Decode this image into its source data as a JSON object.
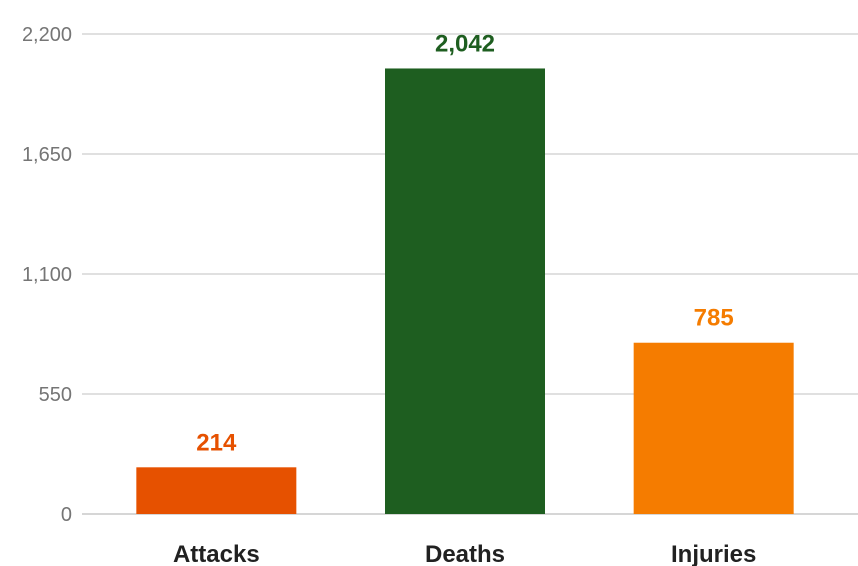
{
  "chart_data": {
    "type": "bar",
    "categories": [
      "Attacks",
      "Deaths",
      "Injuries"
    ],
    "values": [
      214,
      2042,
      785
    ],
    "data_labels": [
      "214",
      "2,042",
      "785"
    ],
    "colors": [
      "#e65100",
      "#1e5e20",
      "#f57c00"
    ],
    "ylim": [
      0,
      2200
    ],
    "yticks": [
      0,
      550,
      1100,
      1650,
      2200
    ],
    "ytick_labels": [
      "0",
      "550",
      "1,100",
      "1,650",
      "2,200"
    ],
    "grid": true,
    "legend": "none"
  }
}
